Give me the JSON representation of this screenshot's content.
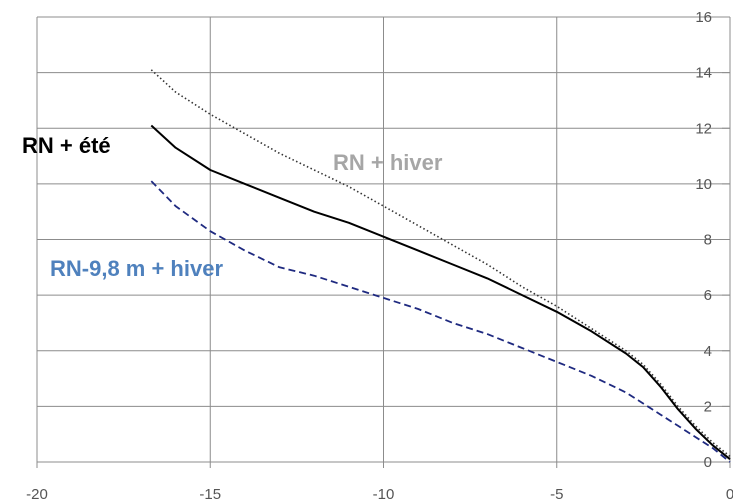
{
  "chart_data": {
    "type": "line",
    "title": "",
    "xlabel": "",
    "ylabel": "",
    "xlim": [
      -20,
      0
    ],
    "ylim": [
      0,
      16
    ],
    "grid": true,
    "x_ticks": [
      -20,
      -15,
      -10,
      -5,
      0
    ],
    "x_tick_labels": [
      "-20",
      "-15",
      "-10",
      "-5",
      "0"
    ],
    "y_ticks": [
      0,
      2,
      4,
      6,
      8,
      10,
      12,
      14,
      16
    ],
    "y_tick_labels": [
      "0",
      "2",
      "4",
      "6",
      "8",
      "10",
      "12",
      "14",
      "16"
    ],
    "series": [
      {
        "name": "RN + été",
        "color": "#000000",
        "style": "solid",
        "x": [
          -16.7,
          -16,
          -15,
          -14,
          -13,
          -12,
          -11,
          -10,
          -9,
          -8,
          -7,
          -6,
          -5,
          -4,
          -3,
          -2.5,
          -2,
          -1.5,
          -1,
          -0.5,
          0
        ],
        "y": [
          12.1,
          11.3,
          10.5,
          10.0,
          9.5,
          9.0,
          8.6,
          8.1,
          7.6,
          7.1,
          6.6,
          6.0,
          5.4,
          4.7,
          3.9,
          3.4,
          2.7,
          1.9,
          1.2,
          0.6,
          0.1
        ]
      },
      {
        "name": "RN + hiver",
        "color": "#333333",
        "style": "dotted",
        "x": [
          -16.7,
          -16,
          -15,
          -14,
          -13,
          -12,
          -11,
          -10,
          -9,
          -8,
          -7,
          -6,
          -5,
          -4,
          -3,
          -2.5,
          -2,
          -1.5,
          -1,
          -0.5,
          0
        ],
        "y": [
          14.1,
          13.3,
          12.5,
          11.8,
          11.1,
          10.5,
          9.9,
          9.2,
          8.5,
          7.8,
          7.1,
          6.3,
          5.6,
          4.8,
          4.0,
          3.5,
          2.8,
          2.0,
          1.3,
          0.7,
          0.2
        ]
      },
      {
        "name": "RN-9,8 m + hiver",
        "color": "#1f2a80",
        "style": "dashed",
        "x": [
          -16.7,
          -16,
          -15,
          -14,
          -13,
          -12,
          -11,
          -10,
          -9,
          -8,
          -7,
          -6,
          -5,
          -4,
          -3,
          -2.5,
          -2,
          -1.5,
          -1,
          -0.5,
          0
        ],
        "y": [
          10.1,
          9.2,
          8.3,
          7.6,
          7.0,
          6.7,
          6.3,
          5.9,
          5.5,
          5.0,
          4.6,
          4.1,
          3.6,
          3.1,
          2.5,
          2.1,
          1.7,
          1.3,
          0.9,
          0.5,
          0.0
        ]
      }
    ],
    "annotations": [
      {
        "text": "RN + été",
        "color": "#000000"
      },
      {
        "text": "RN + hiver",
        "color": "#a6a6a6"
      },
      {
        "text": "RN-9,8 m + hiver",
        "color": "#4f81bd"
      }
    ]
  }
}
